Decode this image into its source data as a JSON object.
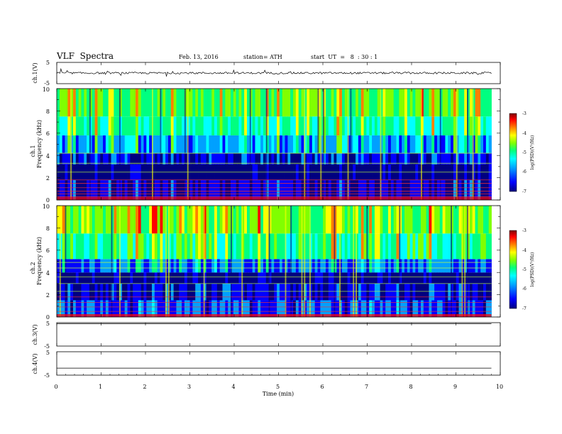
{
  "header": {
    "title": "VLF  Spectra",
    "date": "Feb. 13, 2016",
    "station": "station= ATH",
    "start": "start  UT  =   8  : 30 : 1"
  },
  "chart_data": [
    {
      "type": "line",
      "panel": "ch1-waveform",
      "ylabel": "ch.1(V)",
      "ylim": [
        -5,
        5
      ],
      "yticks": [
        "5",
        "-5"
      ],
      "baseline": 0.0,
      "description_values": {
        "mean": 0.0,
        "min": -2.5,
        "max": 2.0
      }
    },
    {
      "type": "heatmap",
      "panel": "ch1-spectrogram",
      "ylabel": "Frequency  (kHz)",
      "channel_label": "ch.1",
      "ylim": [
        0,
        10
      ],
      "yticks": [
        "0",
        "2",
        "4",
        "6",
        "8",
        "10"
      ],
      "xlim": [
        0,
        9.8
      ],
      "colorbar": {
        "label": "log(PSD)(V²/Hz)",
        "range": [
          -7,
          -3
        ],
        "ticks": [
          "-3",
          "-4",
          "-5",
          "-6",
          "-7"
        ]
      },
      "bands": [
        {
          "f_from": 0,
          "f_to": 1.8,
          "level": -6.6
        },
        {
          "f_from": 1.8,
          "f_to": 3.2,
          "level": -6.9
        },
        {
          "f_from": 3.2,
          "f_to": 4.2,
          "level": -6.5
        },
        {
          "f_from": 4.2,
          "f_to": 5.8,
          "level": -6.0
        },
        {
          "f_from": 5.8,
          "f_to": 7.5,
          "level": -5.4
        },
        {
          "f_from": 7.5,
          "f_to": 10,
          "level": -5.0
        }
      ],
      "tones_khz": [
        0.3,
        0.55,
        0.8,
        1.1,
        1.5,
        1.8,
        2.5,
        3.3,
        4.2
      ]
    },
    {
      "type": "heatmap",
      "panel": "ch2-spectrogram",
      "ylabel": "Frequency  (kHz)",
      "channel_label": "ch.2",
      "ylim": [
        0,
        10
      ],
      "yticks": [
        "0",
        "2",
        "4",
        "6",
        "8",
        "10"
      ],
      "xlim": [
        0,
        9.8
      ],
      "colorbar": {
        "label": "log(PSD)(V²/Hz)",
        "range": [
          -7,
          -3
        ],
        "ticks": [
          "-3",
          "-4",
          "-5",
          "-6",
          "-7"
        ]
      },
      "bands": [
        {
          "f_from": 0,
          "f_to": 1.5,
          "level": -6.3
        },
        {
          "f_from": 1.5,
          "f_to": 3.0,
          "level": -6.5
        },
        {
          "f_from": 3.0,
          "f_to": 4.0,
          "level": -6.9
        },
        {
          "f_from": 4.0,
          "f_to": 5.2,
          "level": -6.2
        },
        {
          "f_from": 5.2,
          "f_to": 7.5,
          "level": -5.3
        },
        {
          "f_from": 7.5,
          "f_to": 10,
          "level": -4.9
        }
      ],
      "tones_khz": [
        0.2,
        0.5,
        0.9,
        1.3,
        1.8,
        2.3,
        3.0,
        3.6,
        4.4,
        4.9
      ]
    },
    {
      "type": "line",
      "panel": "ch3-waveform",
      "ylabel": "ch.3(V)",
      "ylim": [
        -5,
        5
      ],
      "yticks": [
        "5",
        "-5"
      ],
      "baseline": 4.5
    },
    {
      "type": "line",
      "panel": "ch4-waveform",
      "ylabel": "ch.4(V)",
      "ylim": [
        -5,
        5
      ],
      "yticks": [
        "5",
        "-5"
      ],
      "baseline": -2.0
    }
  ],
  "xaxis": {
    "label": "Time  (min)",
    "ticks": [
      "0",
      "1",
      "2",
      "3",
      "4",
      "5",
      "6",
      "7",
      "8",
      "9",
      "10"
    ],
    "xlim": [
      0,
      10
    ]
  },
  "colors": {
    "colormap": [
      "#000080",
      "#0000ff",
      "#00a0ff",
      "#00ffff",
      "#00ff80",
      "#80ff00",
      "#ffff00",
      "#ff8000",
      "#ff0000",
      "#800000"
    ]
  }
}
